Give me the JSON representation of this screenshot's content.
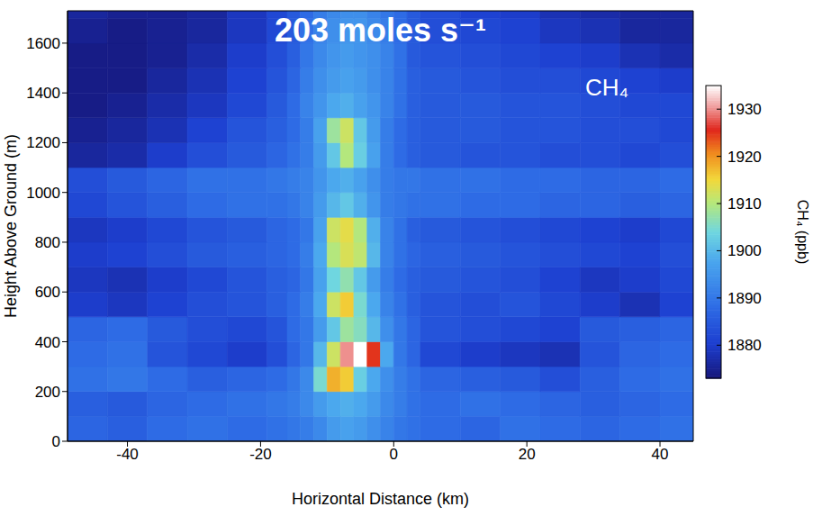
{
  "chart_data": {
    "type": "heatmap",
    "title": "203 moles s⁻¹",
    "annotations": [
      "CH₄"
    ],
    "x_label": "Horizontal Distance (km)",
    "y_label": "Height Above Ground (m)",
    "xlim": [
      -49,
      45
    ],
    "xticks": [
      -40,
      -20,
      0,
      20,
      40
    ],
    "ylim": [
      0,
      1730
    ],
    "yticks": [
      0,
      200,
      400,
      600,
      800,
      1000,
      1200,
      1400,
      1600
    ],
    "x_edges": [
      -49,
      -43,
      -37,
      -31,
      -25,
      -19,
      -16,
      -14,
      -12,
      -10,
      -8,
      -6,
      -4,
      -2,
      0,
      2,
      4,
      10,
      16,
      22,
      28,
      34,
      40,
      45
    ],
    "y_edges": [
      0,
      100,
      200,
      300,
      400,
      500,
      600,
      700,
      800,
      900,
      1000,
      1100,
      1200,
      1300,
      1400,
      1500,
      1600,
      1700,
      1730
    ],
    "cells": [
      [
        1887,
        1886,
        1888,
        1889,
        1888,
        1889,
        1890,
        1891,
        1893,
        1896,
        1897,
        1896,
        1894,
        1892,
        1890,
        1889,
        1888,
        1887,
        1889,
        1888,
        1887,
        1888,
        1889
      ],
      [
        1886,
        1885,
        1887,
        1888,
        1889,
        1890,
        1891,
        1893,
        1896,
        1898,
        1899,
        1898,
        1896,
        1893,
        1891,
        1889,
        1888,
        1889,
        1888,
        1887,
        1886,
        1887,
        1888
      ],
      [
        1889,
        1890,
        1888,
        1886,
        1887,
        1888,
        1890,
        1893,
        1905,
        1918,
        1916,
        1903,
        1898,
        1894,
        1891,
        1889,
        1887,
        1886,
        1885,
        1883,
        1886,
        1888,
        1889
      ],
      [
        1888,
        1889,
        1884,
        1882,
        1880,
        1883,
        1887,
        1890,
        1900,
        1912,
        1930,
        1935,
        1925,
        1898,
        1890,
        1887,
        1882,
        1880,
        1879,
        1878,
        1884,
        1887,
        1888
      ],
      [
        1887,
        1888,
        1885,
        1883,
        1882,
        1884,
        1888,
        1890,
        1896,
        1902,
        1908,
        1906,
        1900,
        1894,
        1890,
        1887,
        1884,
        1883,
        1882,
        1881,
        1885,
        1886,
        1887
      ],
      [
        1880,
        1879,
        1881,
        1883,
        1884,
        1886,
        1888,
        1891,
        1898,
        1912,
        1916,
        1905,
        1898,
        1892,
        1889,
        1886,
        1884,
        1883,
        1884,
        1882,
        1880,
        1878,
        1881
      ],
      [
        1879,
        1878,
        1880,
        1882,
        1884,
        1886,
        1887,
        1890,
        1897,
        1904,
        1907,
        1902,
        1896,
        1891,
        1888,
        1886,
        1885,
        1884,
        1883,
        1881,
        1879,
        1880,
        1882
      ],
      [
        1880,
        1881,
        1883,
        1885,
        1886,
        1887,
        1888,
        1891,
        1898,
        1910,
        1913,
        1911,
        1900,
        1892,
        1889,
        1887,
        1886,
        1885,
        1884,
        1883,
        1882,
        1881,
        1883
      ],
      [
        1879,
        1880,
        1882,
        1884,
        1885,
        1887,
        1888,
        1890,
        1897,
        1912,
        1914,
        1910,
        1899,
        1892,
        1889,
        1886,
        1885,
        1884,
        1883,
        1882,
        1881,
        1880,
        1882
      ],
      [
        1882,
        1884,
        1886,
        1888,
        1889,
        1889,
        1890,
        1892,
        1896,
        1900,
        1902,
        1899,
        1895,
        1891,
        1890,
        1889,
        1889,
        1888,
        1888,
        1887,
        1887,
        1886,
        1887
      ],
      [
        1883,
        1885,
        1887,
        1889,
        1889,
        1890,
        1891,
        1892,
        1895,
        1898,
        1899,
        1897,
        1894,
        1891,
        1890,
        1890,
        1889,
        1889,
        1888,
        1888,
        1887,
        1887,
        1888
      ],
      [
        1876,
        1877,
        1880,
        1883,
        1885,
        1887,
        1889,
        1891,
        1896,
        1902,
        1910,
        1903,
        1897,
        1891,
        1888,
        1886,
        1885,
        1884,
        1884,
        1883,
        1883,
        1882,
        1883
      ],
      [
        1875,
        1876,
        1878,
        1881,
        1884,
        1886,
        1888,
        1891,
        1897,
        1908,
        1912,
        1902,
        1896,
        1891,
        1888,
        1886,
        1885,
        1885,
        1884,
        1884,
        1883,
        1883,
        1882
      ],
      [
        1874,
        1875,
        1877,
        1879,
        1882,
        1885,
        1888,
        1892,
        1895,
        1898,
        1899,
        1897,
        1895,
        1892,
        1889,
        1886,
        1885,
        1885,
        1884,
        1884,
        1883,
        1882,
        1882
      ],
      [
        1874,
        1874,
        1876,
        1878,
        1881,
        1884,
        1887,
        1891,
        1894,
        1896,
        1897,
        1896,
        1894,
        1892,
        1889,
        1886,
        1885,
        1884,
        1883,
        1883,
        1882,
        1881,
        1880
      ],
      [
        1874,
        1874,
        1875,
        1877,
        1880,
        1883,
        1886,
        1890,
        1893,
        1895,
        1896,
        1895,
        1894,
        1892,
        1889,
        1885,
        1884,
        1883,
        1882,
        1881,
        1880,
        1878,
        1877
      ],
      [
        1875,
        1874,
        1875,
        1876,
        1879,
        1882,
        1885,
        1889,
        1892,
        1894,
        1895,
        1895,
        1893,
        1891,
        1888,
        1885,
        1883,
        1882,
        1881,
        1879,
        1878,
        1876,
        1876
      ],
      [
        1876,
        1875,
        1875,
        1876,
        1879,
        1882,
        1885,
        1888,
        1891,
        1893,
        1894,
        1894,
        1892,
        1890,
        1888,
        1885,
        1883,
        1881,
        1880,
        1878,
        1877,
        1876,
        1876
      ]
    ],
    "colorbar": {
      "label": "CH₄ (ppb)",
      "lim": [
        1873,
        1935
      ],
      "ticks": [
        1880,
        1890,
        1900,
        1910,
        1920,
        1930
      ]
    }
  }
}
